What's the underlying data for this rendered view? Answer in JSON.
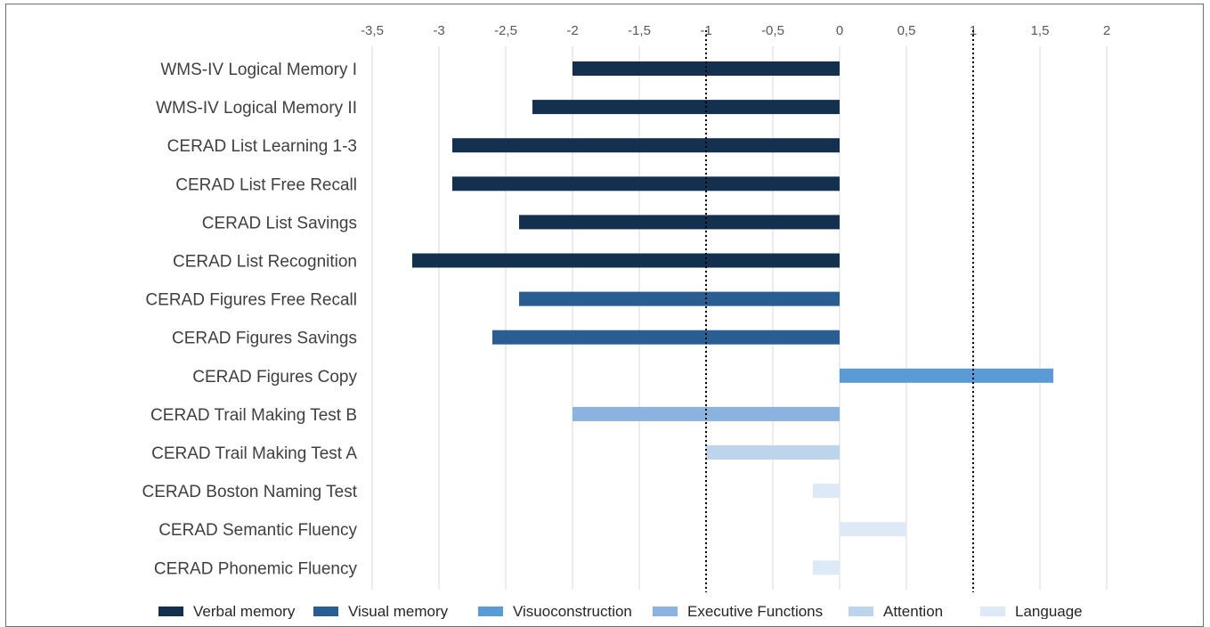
{
  "chart_data": {
    "type": "bar",
    "orientation": "horizontal",
    "title": "",
    "xlabel": "",
    "ylabel": "",
    "xlim": [
      -3.5,
      2
    ],
    "ticks": [
      -3.5,
      -3,
      -2.5,
      -2,
      -1.5,
      -1,
      -0.5,
      0,
      0.5,
      1,
      1.5,
      2
    ],
    "tick_labels": [
      "-3,5",
      "-3",
      "-2,5",
      "-2",
      "-1,5",
      "-1",
      "-0,5",
      "0",
      "0,5",
      "1",
      "1,5",
      "2"
    ],
    "tick_position": "top",
    "grid": true,
    "reference_lines": [
      -1,
      1
    ],
    "categories": [
      "WMS-IV Logical Memory I",
      "WMS-IV Logical Memory II",
      "CERAD List Learning 1-3",
      "CERAD List Free Recall",
      "CERAD List Savings",
      "CERAD List Recognition",
      "CERAD Figures Free Recall",
      "CERAD Figures Savings",
      "CERAD Figures Copy",
      "CERAD Trail Making Test B",
      "CERAD Trail Making Test A",
      "CERAD Boston Naming Test",
      "CERAD Semantic Fluency",
      "CERAD Phonemic Fluency"
    ],
    "values": [
      -2.0,
      -2.3,
      -2.9,
      -2.9,
      -2.4,
      -3.2,
      -2.4,
      -2.6,
      1.6,
      -2.0,
      -1.0,
      -0.2,
      0.5,
      -0.2
    ],
    "groups": [
      0,
      0,
      0,
      0,
      0,
      0,
      1,
      1,
      2,
      3,
      4,
      5,
      5,
      5
    ],
    "legend": {
      "placement": "bottom",
      "entries": [
        {
          "name": "Verbal memory",
          "color": "#13304f"
        },
        {
          "name": "Visual memory",
          "color": "#2a5d92"
        },
        {
          "name": "Visuoconstruction",
          "color": "#5b9bd5"
        },
        {
          "name": "Executive Functions",
          "color": "#8ab4df"
        },
        {
          "name": "Attention",
          "color": "#bcd5ec"
        },
        {
          "name": "Language",
          "color": "#dde9f6"
        }
      ]
    }
  }
}
